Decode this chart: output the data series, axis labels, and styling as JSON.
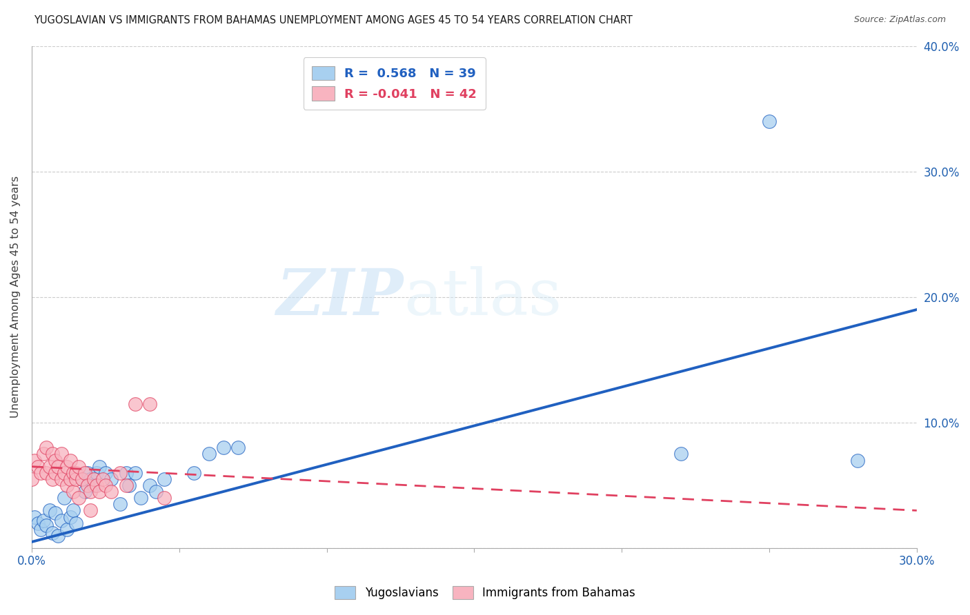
{
  "title": "YUGOSLAVIAN VS IMMIGRANTS FROM BAHAMAS UNEMPLOYMENT AMONG AGES 45 TO 54 YEARS CORRELATION CHART",
  "source": "Source: ZipAtlas.com",
  "ylabel": "Unemployment Among Ages 45 to 54 years",
  "xlim": [
    0.0,
    0.3
  ],
  "ylim": [
    0.0,
    0.4
  ],
  "xticks": [
    0.0,
    0.05,
    0.1,
    0.15,
    0.2,
    0.25,
    0.3
  ],
  "yticks": [
    0.0,
    0.1,
    0.2,
    0.3,
    0.4
  ],
  "xtick_labels": [
    "0.0%",
    "",
    "",
    "",
    "",
    "",
    "30.0%"
  ],
  "ytick_labels_right": [
    "",
    "10.0%",
    "20.0%",
    "30.0%",
    "40.0%"
  ],
  "legend_blue_label": "R =  0.568   N = 39",
  "legend_pink_label": "R = -0.041   N = 42",
  "blue_R": 0.568,
  "pink_R": -0.041,
  "blue_color": "#a8d0f0",
  "pink_color": "#f8b4c0",
  "blue_line_color": "#2060c0",
  "pink_line_color": "#e04060",
  "watermark_zip": "ZIP",
  "watermark_atlas": "atlas",
  "legend_label_blue": "Yugoslavians",
  "legend_label_pink": "Immigrants from Bahamas",
  "blue_line_x": [
    0.0,
    0.3
  ],
  "blue_line_y": [
    0.005,
    0.19
  ],
  "pink_line_x": [
    0.0,
    0.3
  ],
  "pink_line_y": [
    0.065,
    0.03
  ],
  "blue_scatter_x": [
    0.001,
    0.002,
    0.003,
    0.004,
    0.005,
    0.006,
    0.007,
    0.008,
    0.009,
    0.01,
    0.011,
    0.012,
    0.013,
    0.014,
    0.015,
    0.017,
    0.018,
    0.019,
    0.02,
    0.021,
    0.022,
    0.023,
    0.025,
    0.027,
    0.03,
    0.032,
    0.033,
    0.035,
    0.037,
    0.04,
    0.042,
    0.045,
    0.065,
    0.07,
    0.22,
    0.25,
    0.28,
    0.06,
    0.055
  ],
  "blue_scatter_y": [
    0.025,
    0.02,
    0.015,
    0.022,
    0.018,
    0.03,
    0.012,
    0.028,
    0.01,
    0.022,
    0.04,
    0.015,
    0.025,
    0.03,
    0.02,
    0.055,
    0.045,
    0.06,
    0.055,
    0.05,
    0.06,
    0.065,
    0.06,
    0.055,
    0.035,
    0.06,
    0.05,
    0.06,
    0.04,
    0.05,
    0.045,
    0.055,
    0.08,
    0.08,
    0.075,
    0.34,
    0.07,
    0.075,
    0.06
  ],
  "pink_scatter_x": [
    0.0,
    0.001,
    0.002,
    0.003,
    0.004,
    0.005,
    0.005,
    0.006,
    0.007,
    0.007,
    0.008,
    0.008,
    0.009,
    0.01,
    0.01,
    0.011,
    0.012,
    0.012,
    0.013,
    0.013,
    0.014,
    0.014,
    0.015,
    0.015,
    0.016,
    0.017,
    0.018,
    0.019,
    0.02,
    0.021,
    0.022,
    0.023,
    0.024,
    0.025,
    0.027,
    0.03,
    0.032,
    0.035,
    0.04,
    0.045,
    0.02,
    0.016
  ],
  "pink_scatter_y": [
    0.055,
    0.07,
    0.065,
    0.06,
    0.075,
    0.08,
    0.06,
    0.065,
    0.055,
    0.075,
    0.06,
    0.07,
    0.065,
    0.055,
    0.075,
    0.06,
    0.05,
    0.065,
    0.055,
    0.07,
    0.06,
    0.045,
    0.055,
    0.06,
    0.065,
    0.055,
    0.06,
    0.05,
    0.045,
    0.055,
    0.05,
    0.045,
    0.055,
    0.05,
    0.045,
    0.06,
    0.05,
    0.115,
    0.115,
    0.04,
    0.03,
    0.04
  ]
}
